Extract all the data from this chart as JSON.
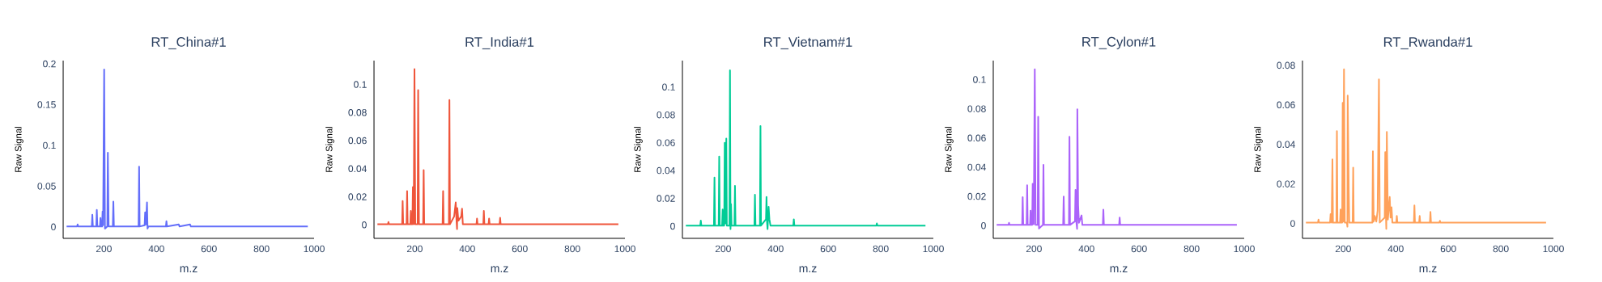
{
  "chart_data": [
    {
      "type": "line",
      "title": "RT_China#1",
      "xlabel": "m.z",
      "ylabel": "Raw Signal",
      "xlim": [
        45,
        1000
      ],
      "ylim": [
        -0.014,
        0.204
      ],
      "xticks": [
        200,
        400,
        600,
        800,
        1000
      ],
      "yticks": [
        0,
        0.05,
        0.1,
        0.15,
        0.2
      ],
      "x": [
        58,
        98,
        100,
        102,
        154,
        156,
        158,
        171,
        173,
        175,
        185,
        187,
        189,
        193,
        195,
        197,
        201,
        204,
        213,
        215,
        218,
        234,
        236,
        238,
        332,
        334,
        336,
        355,
        357,
        360,
        364,
        366,
        369,
        436,
        438,
        440,
        485,
        488,
        528,
        531,
        976
      ],
      "series": [
        {
          "color": "#636efa",
          "values": [
            0.0005,
            0.0005,
            0.003,
            0.0005,
            0.0005,
            0.015,
            0.0005,
            0.0005,
            0.021,
            0.0005,
            0.0005,
            0.011,
            0.0005,
            0.0005,
            0.019,
            0.002,
            0.193,
            -0.002,
            0.0005,
            0.091,
            0.0005,
            0.0005,
            0.031,
            0.0005,
            0.0005,
            0.074,
            0.0005,
            0.002,
            0.018,
            0.003,
            0.03,
            -0.002,
            0.0005,
            0.0005,
            0.007,
            0.0005,
            0.003,
            0.0005,
            0.003,
            0.0005,
            0.0005
          ]
        }
      ]
    },
    {
      "type": "line",
      "title": "RT_India#1",
      "xlabel": "m.z",
      "ylabel": "Raw Signal",
      "xlim": [
        45,
        1000
      ],
      "ylim": [
        -0.0096,
        0.117
      ],
      "xticks": [
        200,
        400,
        600,
        800,
        1000
      ],
      "yticks": [
        0,
        0.02,
        0.04,
        0.06,
        0.08,
        0.1
      ],
      "x": [
        58,
        98,
        100,
        102,
        152,
        154,
        156,
        169,
        171,
        173,
        183,
        185,
        187,
        191,
        193,
        196,
        199,
        202,
        211,
        213,
        216,
        232,
        234,
        236,
        306,
        308,
        310,
        330,
        332,
        334,
        350,
        356,
        359,
        361,
        362,
        366,
        377,
        380,
        383,
        435,
        437,
        439,
        461,
        463,
        465,
        481,
        483,
        485,
        523,
        525,
        527,
        975
      ],
      "series": [
        {
          "color": "#ef553b",
          "values": [
            0.0005,
            0.0005,
            0.002,
            0.0005,
            0.0005,
            0.017,
            0.0005,
            0.0005,
            0.024,
            0.0005,
            0.0005,
            0.01,
            0.0005,
            0.0005,
            0.027,
            0.0005,
            0.111,
            0.0005,
            0.0005,
            0.096,
            0.0005,
            0.0005,
            0.039,
            0.0005,
            0.0005,
            0.024,
            0.0005,
            0.0005,
            0.089,
            0.0005,
            0.006,
            0.016,
            0.003,
            -0.003,
            0.012,
            0.003,
            0.006,
            0.0115,
            0.0005,
            0.0005,
            0.0045,
            0.0005,
            0.0005,
            0.01,
            0.0005,
            0.0005,
            0.0045,
            0.0005,
            0.0005,
            0.005,
            0.0005,
            0.0005
          ]
        }
      ]
    },
    {
      "type": "line",
      "title": "RT_Vietnam#1",
      "xlabel": "m.z",
      "ylabel": "Raw Signal",
      "xlim": [
        45,
        1000
      ],
      "ylim": [
        -0.0087,
        0.119
      ],
      "xticks": [
        200,
        400,
        600,
        800,
        1000
      ],
      "yticks": [
        0,
        0.02,
        0.04,
        0.06,
        0.08,
        0.1
      ],
      "x": [
        58,
        113,
        115,
        117,
        165,
        167,
        169,
        183,
        185,
        187,
        196,
        198,
        200,
        204,
        206,
        209,
        212,
        214,
        224,
        226,
        228,
        230,
        232,
        243,
        245,
        247,
        319,
        321,
        323,
        340,
        342,
        344,
        363,
        365,
        367,
        369,
        373,
        376,
        380,
        467,
        469,
        471,
        783,
        785,
        787,
        970
      ],
      "series": [
        {
          "color": "#00cc96",
          "values": [
            0.0005,
            0.0005,
            0.004,
            0.0005,
            0.0005,
            0.035,
            0.0005,
            0.0005,
            0.05,
            0.0005,
            0.0005,
            0.012,
            0.0005,
            0.0005,
            0.06,
            0.002,
            0.063,
            0.0005,
            0.0005,
            0.112,
            -0.002,
            0.016,
            0.0005,
            0.0005,
            0.029,
            0.0005,
            0.0005,
            0.0226,
            0.0005,
            0.0005,
            0.072,
            0.0005,
            0.005,
            0.021,
            0.003,
            -0.002,
            0.014,
            0.005,
            0.0005,
            0.0005,
            0.005,
            0.0005,
            0.0005,
            0.002,
            0.0005,
            0.0005
          ]
        }
      ]
    },
    {
      "type": "line",
      "title": "RT_Cylon#1",
      "xlabel": "m.z",
      "ylabel": "Raw Signal",
      "xlim": [
        45,
        1000
      ],
      "ylim": [
        -0.0087,
        0.113
      ],
      "xticks": [
        200,
        400,
        600,
        800,
        1000
      ],
      "yticks": [
        0,
        0.02,
        0.04,
        0.06,
        0.08,
        0.1
      ],
      "x": [
        58,
        103,
        105,
        107,
        155,
        157,
        159,
        172,
        174,
        176,
        185,
        187,
        189,
        193,
        195,
        199,
        203,
        206,
        214,
        216,
        219,
        234,
        236,
        238,
        311,
        313,
        315,
        333,
        335,
        337,
        356,
        358,
        361,
        364,
        365,
        368,
        371,
        381,
        384,
        462,
        464,
        466,
        524,
        526,
        528,
        972
      ],
      "series": [
        {
          "color": "#ab63fa",
          "values": [
            0.0005,
            0.0005,
            0.002,
            0.0005,
            0.0005,
            0.0195,
            0.0005,
            0.0005,
            0.0276,
            0.0005,
            0.0005,
            0.0103,
            0.0005,
            0.0005,
            0.0287,
            0.001,
            0.107,
            0.0005,
            0.0005,
            0.0746,
            -0.002,
            0.0005,
            0.0416,
            0.0005,
            0.0005,
            0.0199,
            0.0005,
            0.0005,
            0.0608,
            0.0005,
            0.003,
            0.0245,
            0.003,
            -0.0022,
            0.0797,
            0.014,
            0.002,
            0.007,
            0.0005,
            0.0005,
            0.011,
            0.0005,
            0.0005,
            0.0055,
            0.0005,
            0.0005
          ]
        }
      ]
    },
    {
      "type": "line",
      "title": "RT_Rwanda#1",
      "xlabel": "m.z",
      "ylabel": "Raw Signal",
      "xlim": [
        45,
        1000
      ],
      "ylim": [
        -0.0075,
        0.0824
      ],
      "xticks": [
        200,
        400,
        600,
        800,
        1000
      ],
      "yticks": [
        0,
        0.02,
        0.04,
        0.06,
        0.08
      ],
      "x": [
        58,
        104,
        106,
        108,
        150,
        152,
        156,
        159,
        161,
        174,
        176,
        178,
        188,
        190,
        192,
        196,
        198,
        200,
        203,
        206,
        214,
        216,
        217,
        221,
        223,
        236,
        238,
        240,
        311,
        313,
        316,
        320,
        326,
        331,
        336,
        339,
        358,
        360,
        363,
        364,
        366,
        370,
        377,
        380,
        384,
        387,
        402,
        404,
        406,
        469,
        471,
        473,
        489,
        491,
        493,
        530,
        532,
        534,
        566,
        568,
        570,
        972
      ],
      "series": [
        {
          "color": "#ffa15a",
          "values": [
            0.0005,
            0.0005,
            0.002,
            0.0005,
            0.0005,
            0.0048,
            0.0005,
            0.0324,
            0.0005,
            0.0005,
            0.0467,
            0.0005,
            0.0005,
            0.0071,
            0.0005,
            0.0005,
            0.061,
            0.001,
            0.078,
            0.0005,
            0.0005,
            -0.0016,
            0.0647,
            0.0166,
            0.0005,
            0.0005,
            0.0283,
            0.0005,
            0.0005,
            0.0365,
            0.001,
            0.0038,
            0.001,
            0.0065,
            0.0729,
            0.0005,
            0.003,
            0.0361,
            0.002,
            -0.0027,
            0.0463,
            0.002,
            0.0134,
            0.003,
            0.0082,
            0.0005,
            0.0005,
            0.0038,
            0.0005,
            0.0005,
            0.0091,
            0.0005,
            0.0005,
            0.0038,
            0.0005,
            0.0005,
            0.0059,
            0.0005,
            0.0005,
            0.0014,
            0.0005,
            0.0005
          ]
        }
      ]
    }
  ]
}
